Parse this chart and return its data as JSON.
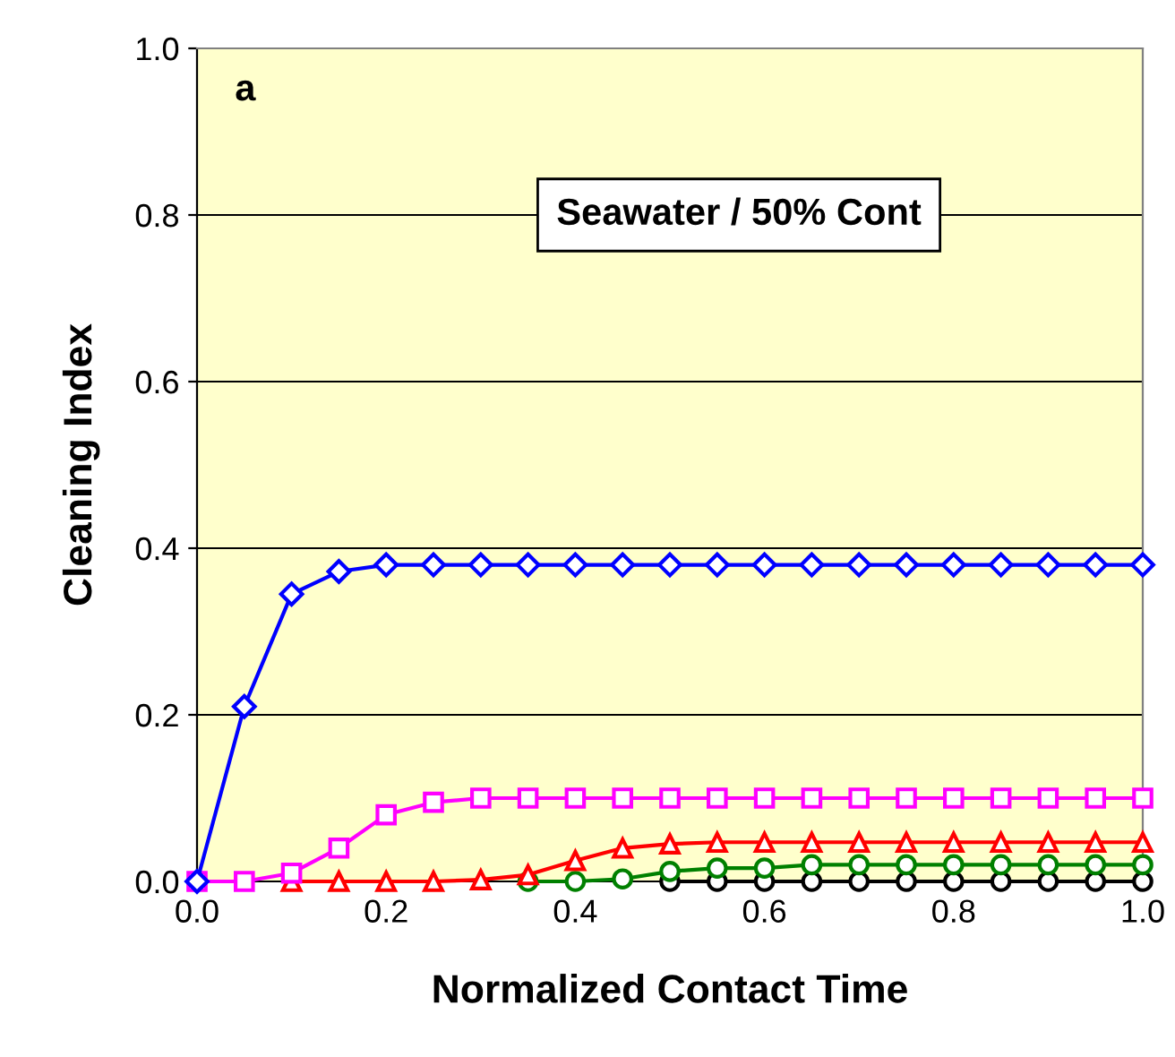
{
  "chart_data": {
    "type": "line",
    "xlabel": "Normalized Contact Time",
    "ylabel": "Cleaning Index",
    "x": [
      0,
      0.05,
      0.1,
      0.15,
      0.2,
      0.25,
      0.3,
      0.35,
      0.4,
      0.45,
      0.5,
      0.55,
      0.6,
      0.65,
      0.7,
      0.75,
      0.8,
      0.85,
      0.9,
      0.95,
      1.0
    ],
    "series": [
      {
        "color": "#0000ff",
        "marker": "diamond",
        "values": [
          0,
          0.21,
          0.345,
          0.372,
          0.38,
          0.38,
          0.38,
          0.38,
          0.38,
          0.38,
          0.38,
          0.38,
          0.38,
          0.38,
          0.38,
          0.38,
          0.38,
          0.38,
          0.38,
          0.38,
          0.38
        ]
      },
      {
        "color": "#ff00ff",
        "marker": "square",
        "values": [
          0,
          0,
          0.01,
          0.04,
          0.08,
          0.095,
          0.1,
          0.1,
          0.1,
          0.1,
          0.1,
          0.1,
          0.1,
          0.1,
          0.1,
          0.1,
          0.1,
          0.1,
          0.1,
          0.1,
          0.1
        ]
      },
      {
        "color": "#ff0000",
        "marker": "triangle",
        "values": [
          null,
          null,
          0,
          0,
          0,
          0,
          0.002,
          0.008,
          0.025,
          0.04,
          0.045,
          0.047,
          0.047,
          0.047,
          0.047,
          0.047,
          0.047,
          0.047,
          0.047,
          0.047,
          0.047
        ]
      },
      {
        "color": "#008000",
        "marker": "circle",
        "values": [
          null,
          null,
          null,
          null,
          null,
          null,
          null,
          0,
          0,
          0.003,
          0.012,
          0.016,
          0.016,
          0.02,
          0.02,
          0.02,
          0.02,
          0.02,
          0.02,
          0.02,
          0.02
        ]
      },
      {
        "color": "#000000",
        "marker": "circle",
        "values": [
          null,
          null,
          null,
          null,
          null,
          null,
          null,
          null,
          null,
          null,
          0,
          0,
          0,
          0,
          0,
          0,
          0,
          0,
          0,
          0,
          0
        ]
      }
    ],
    "xlim": [
      0,
      1.0
    ],
    "xticks": [
      {
        "value": 0,
        "label": "0.0"
      },
      {
        "value": 0.2,
        "label": "0.2"
      },
      {
        "value": 0.4,
        "label": "0.4"
      },
      {
        "value": 0.6,
        "label": "0.6"
      },
      {
        "value": 0.8,
        "label": "0.8"
      },
      {
        "value": 1.0,
        "label": "1.0"
      }
    ],
    "ylim": [
      0,
      1.0
    ],
    "yticks": [
      {
        "value": 0,
        "label": "0.0"
      },
      {
        "value": 0.2,
        "label": "0.2"
      },
      {
        "value": 0.4,
        "label": "0.4"
      },
      {
        "value": 0.6,
        "label": "0.6"
      },
      {
        "value": 0.8,
        "label": "0.8"
      },
      {
        "value": 1.0,
        "label": "1.0"
      }
    ],
    "grid": "y",
    "line_style": "solid",
    "annotations": [
      "a",
      "Seawater / 50% Cont"
    ]
  }
}
